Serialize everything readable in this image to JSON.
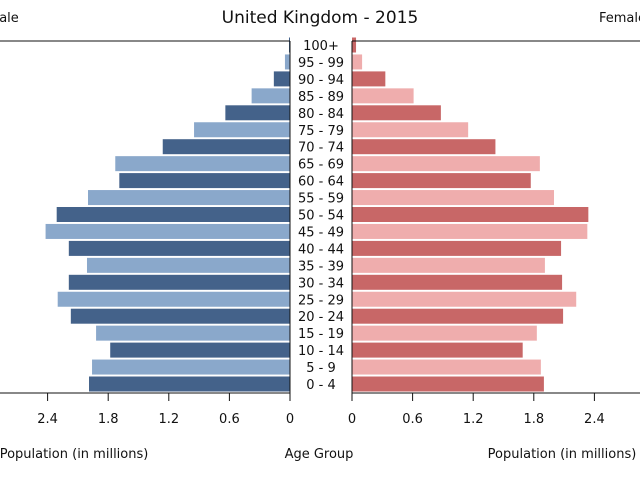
{
  "chart_data": {
    "type": "bar",
    "subtype": "population-pyramid",
    "title": "United Kingdom - 2015",
    "left_label": "Male",
    "right_label": "Female",
    "xlabel_left": "Population (in millions)",
    "xlabel_center": "Age Group",
    "xlabel_right": "Population (in millions)",
    "xlim": [
      0,
      2.9
    ],
    "ticks": [
      "0",
      "0.6",
      "1.2",
      "1.8",
      "2.4"
    ],
    "tick_values": [
      0,
      0.6,
      1.2,
      1.8,
      2.4
    ],
    "categories": [
      "0 - 4",
      "5 - 9",
      "10 - 14",
      "15 - 19",
      "20 - 24",
      "25 - 29",
      "30 - 34",
      "35 - 39",
      "40 - 44",
      "45 - 49",
      "50 - 54",
      "55 - 59",
      "60 - 64",
      "65 - 69",
      "70 - 74",
      "75 - 79",
      "80 - 84",
      "85 - 89",
      "90 - 94",
      "95 - 99",
      "100+"
    ],
    "series": [
      {
        "name": "Male",
        "side": "left",
        "colors": [
          "#44628a",
          "#8aa8cb"
        ],
        "values": [
          1.99,
          1.96,
          1.78,
          1.92,
          2.17,
          2.3,
          2.19,
          2.01,
          2.19,
          2.42,
          2.31,
          2.0,
          1.69,
          1.73,
          1.26,
          0.95,
          0.64,
          0.38,
          0.16,
          0.05,
          0.01
        ]
      },
      {
        "name": "Female",
        "side": "right",
        "colors": [
          "#c86767",
          "#efadad"
        ],
        "values": [
          1.9,
          1.87,
          1.69,
          1.83,
          2.09,
          2.22,
          2.08,
          1.91,
          2.07,
          2.33,
          2.34,
          2.0,
          1.77,
          1.86,
          1.42,
          1.15,
          0.88,
          0.61,
          0.33,
          0.1,
          0.04
        ]
      }
    ],
    "grid": false
  }
}
